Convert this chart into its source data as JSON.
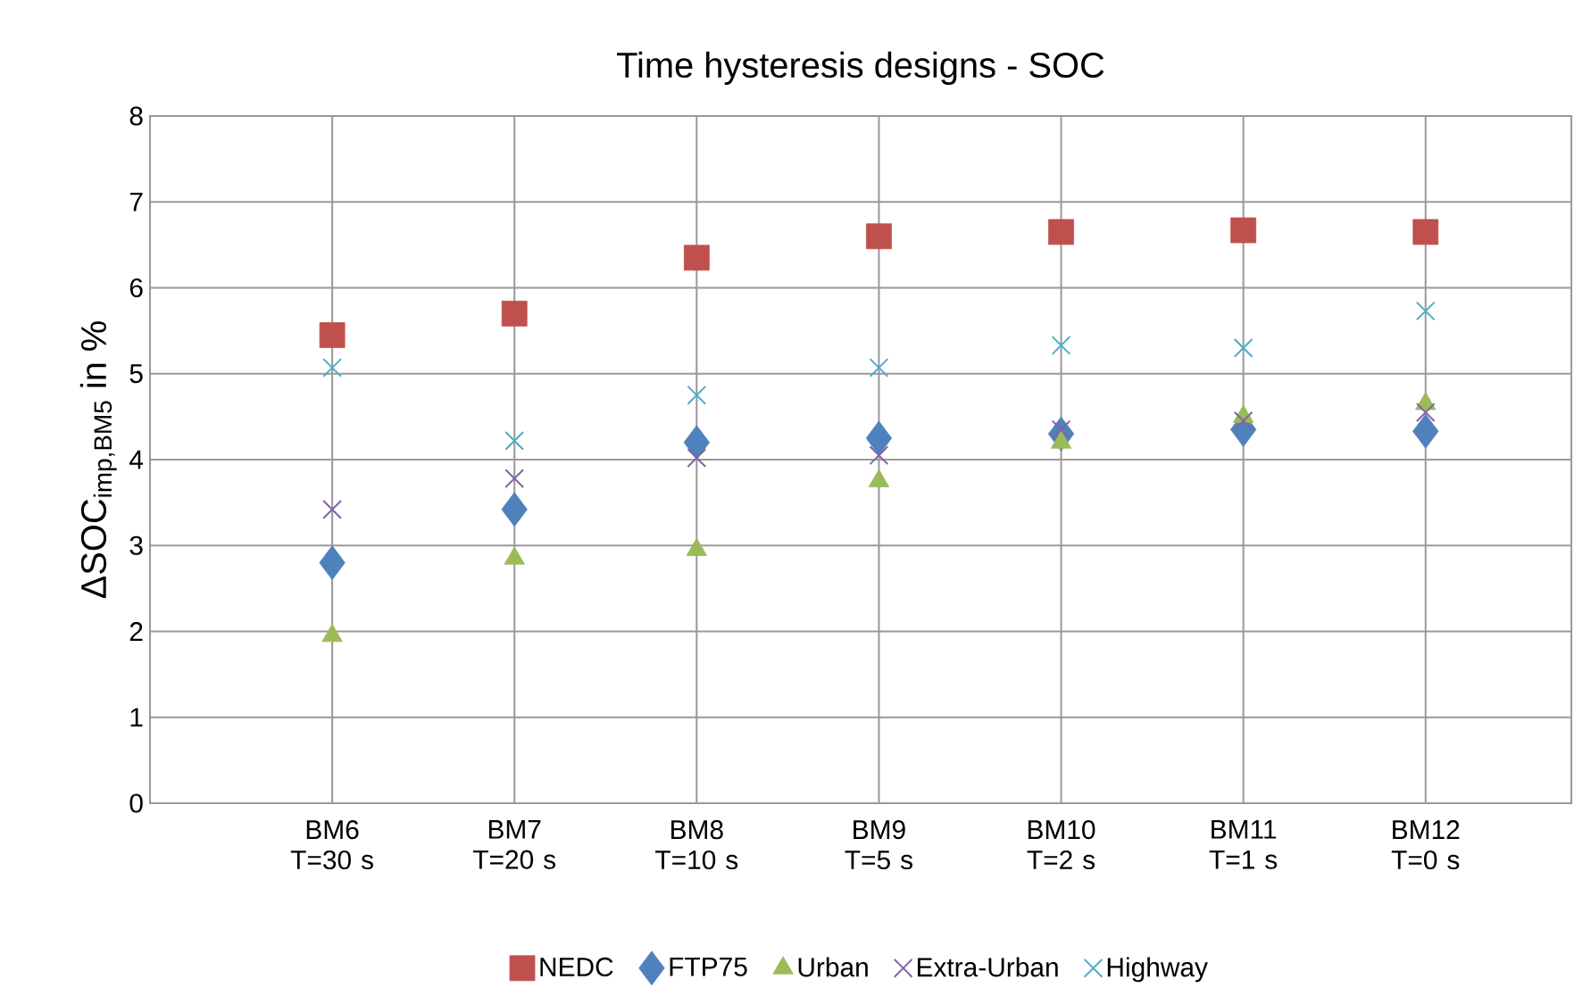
{
  "chart_data": {
    "type": "scatter",
    "title": "Time hysteresis designs - SOC",
    "ylabel": "ΔSOC$_{imp,BM5}$ in %",
    "categories": [
      "BM6 T=30 s",
      "BM7 T=20 s",
      "BM8 T=10 s",
      "BM9 T=5 s",
      "BM10 T=2 s",
      "BM11 T=1 s",
      "BM12 T=0 s"
    ],
    "ylim": [
      0,
      8
    ],
    "yticks": [
      0,
      1,
      2,
      3,
      4,
      5,
      6,
      7,
      8
    ],
    "grid": true,
    "legend": "bottom",
    "series": [
      {
        "name": "NEDC",
        "color": "#c0504d",
        "marker": "square",
        "values": [
          5.45,
          5.7,
          6.35,
          6.6,
          6.65,
          6.67,
          6.65
        ]
      },
      {
        "name": "FTP75",
        "color": "#4f81bd",
        "marker": "diamond",
        "values": [
          2.8,
          3.42,
          4.2,
          4.25,
          4.3,
          4.35,
          4.33
        ]
      },
      {
        "name": "Urban",
        "color": "#9bbb59",
        "marker": "triangle",
        "values": [
          1.95,
          2.85,
          2.95,
          3.75,
          4.2,
          4.5,
          4.65
        ]
      },
      {
        "name": "Extra-Urban",
        "color": "#8064a2",
        "marker": "cross",
        "values": [
          3.42,
          3.78,
          4.02,
          4.05,
          4.35,
          4.45,
          4.55
        ]
      },
      {
        "name": "Highway",
        "color": "#4bacc6",
        "marker": "cross",
        "values": [
          5.07,
          4.22,
          4.75,
          5.07,
          5.33,
          5.3,
          5.73
        ]
      }
    ]
  }
}
